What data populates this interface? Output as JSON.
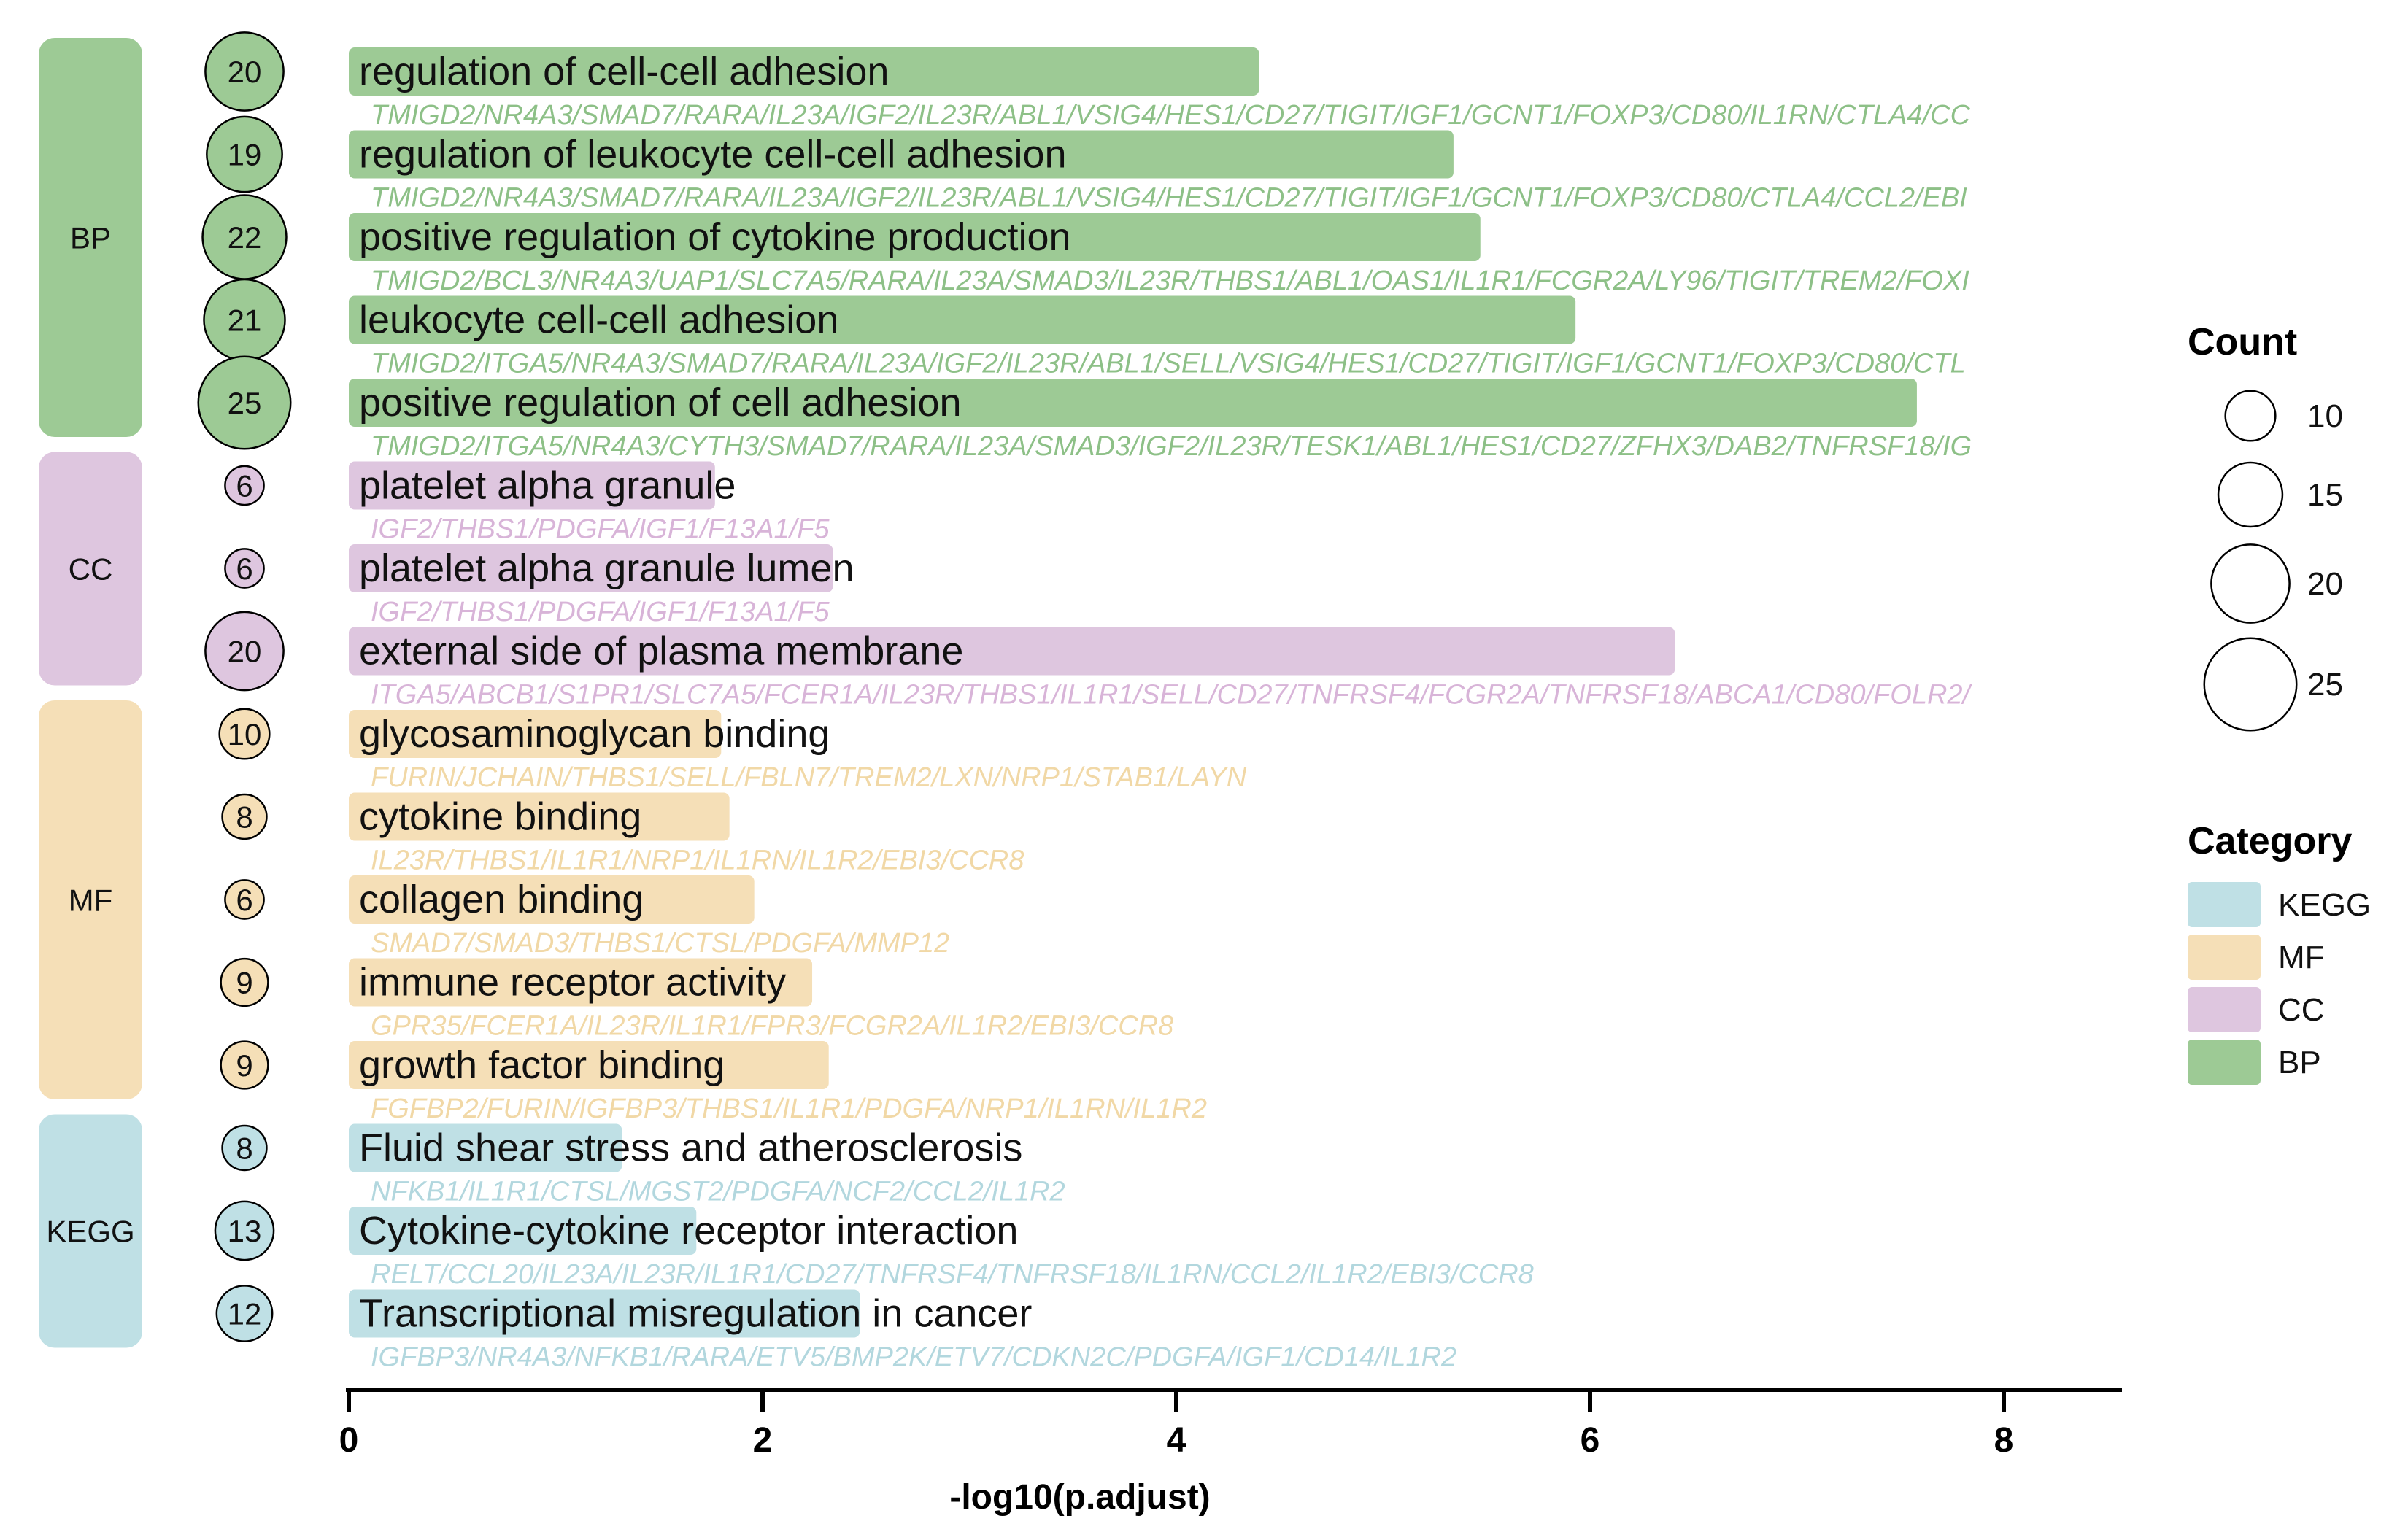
{
  "chart_data": {
    "type": "bar",
    "xlabel": "-log10(p.adjust)",
    "ylabel": "",
    "xlim": [
      0,
      8.6
    ],
    "xticks": [
      0,
      2,
      4,
      6,
      8
    ],
    "grid": false,
    "colors": {
      "BP": "#9DCA95",
      "CC": "#DEC6DF",
      "MF": "#F5DFB7",
      "KEGG": "#BFE0E5"
    },
    "label_colors": {
      "BP": "#8DC087",
      "CC": "#D8B4D8",
      "MF": "#F1D8A6",
      "KEGG": "#B2D7DE"
    },
    "categories": [
      {
        "name": "BP",
        "label": "BP"
      },
      {
        "name": "CC",
        "label": "CC"
      },
      {
        "name": "MF",
        "label": "MF"
      },
      {
        "name": "KEGG",
        "label": "KEGG"
      }
    ],
    "terms": [
      {
        "description": "regulation of cell-cell adhesion",
        "category": "BP",
        "value": 4.4,
        "count": 20,
        "genes": "TMIGD2/NR4A3/SMAD7/RARA/IL23A/IGF2/IL23R/ABL1/VSIG4/HES1/CD27/TIGIT/IGF1/GCNT1/FOXP3/CD80/IL1RN/CTLA4/CC"
      },
      {
        "description": "regulation of leukocyte cell-cell adhesion",
        "category": "BP",
        "value": 5.34,
        "count": 19,
        "genes": "TMIGD2/NR4A3/SMAD7/RARA/IL23A/IGF2/IL23R/ABL1/VSIG4/HES1/CD27/TIGIT/IGF1/GCNT1/FOXP3/CD80/CTLA4/CCL2/EBI"
      },
      {
        "description": "positive regulation of cytokine production",
        "category": "BP",
        "value": 5.47,
        "count": 22,
        "genes": "TMIGD2/BCL3/NR4A3/UAP1/SLC7A5/RARA/IL23A/SMAD3/IL23R/THBS1/ABL1/OAS1/IL1R1/FCGR2A/LY96/TIGIT/TREM2/FOXI"
      },
      {
        "description": "leukocyte cell-cell adhesion",
        "category": "BP",
        "value": 5.93,
        "count": 21,
        "genes": "TMIGD2/ITGA5/NR4A3/SMAD7/RARA/IL23A/IGF2/IL23R/ABL1/SELL/VSIG4/HES1/CD27/TIGIT/IGF1/GCNT1/FOXP3/CD80/CTL"
      },
      {
        "description": "positive regulation of cell adhesion",
        "category": "BP",
        "value": 7.58,
        "count": 25,
        "genes": "TMIGD2/ITGA5/NR4A3/CYTH3/SMAD7/RARA/IL23A/SMAD3/IGF2/IL23R/TESK1/ABL1/HES1/CD27/ZFHX3/DAB2/TNFRSF18/IG"
      },
      {
        "description": "platelet alpha granule",
        "category": "CC",
        "value": 1.77,
        "count": 6,
        "genes": "IGF2/THBS1/PDGFA/IGF1/F13A1/F5"
      },
      {
        "description": "platelet alpha granule lumen",
        "category": "CC",
        "value": 2.34,
        "count": 6,
        "genes": "IGF2/THBS1/PDGFA/IGF1/F13A1/F5"
      },
      {
        "description": "external side of plasma membrane",
        "category": "CC",
        "value": 6.41,
        "count": 20,
        "genes": "ITGA5/ABCB1/S1PR1/SLC7A5/FCER1A/IL23R/THBS1/IL1R1/SELL/CD27/TNFRSF4/FCGR2A/TNFRSF18/ABCA1/CD80/FOLR2/"
      },
      {
        "description": "glycosaminoglycan binding",
        "category": "MF",
        "value": 1.8,
        "count": 10,
        "genes": "FURIN/JCHAIN/THBS1/SELL/FBLN7/TREM2/LXN/NRP1/STAB1/LAYN"
      },
      {
        "description": "cytokine binding",
        "category": "MF",
        "value": 1.84,
        "count": 8,
        "genes": "IL23R/THBS1/IL1R1/NRP1/IL1RN/IL1R2/EBI3/CCR8"
      },
      {
        "description": "collagen binding",
        "category": "MF",
        "value": 1.96,
        "count": 6,
        "genes": "SMAD7/SMAD3/THBS1/CTSL/PDGFA/MMP12"
      },
      {
        "description": "immune receptor activity",
        "category": "MF",
        "value": 2.24,
        "count": 9,
        "genes": "GPR35/FCER1A/IL23R/IL1R1/FPR3/FCGR2A/IL1R2/EBI3/CCR8"
      },
      {
        "description": "growth factor binding",
        "category": "MF",
        "value": 2.32,
        "count": 9,
        "genes": "FGFBP2/FURIN/IGFBP3/THBS1/IL1R1/PDGFA/NRP1/IL1RN/IL1R2"
      },
      {
        "description": "Fluid shear stress and atherosclerosis",
        "category": "KEGG",
        "value": 1.32,
        "count": 8,
        "genes": "NFKB1/IL1R1/CTSL/MGST2/PDGFA/NCF2/CCL2/IL1R2"
      },
      {
        "description": "Cytokine-cytokine receptor interaction",
        "category": "KEGG",
        "value": 1.68,
        "count": 13,
        "genes": "RELT/CCL20/IL23A/IL23R/IL1R1/CD27/TNFRSF4/TNFRSF18/IL1RN/CCL2/IL1R2/EBI3/CCR8"
      },
      {
        "description": "Transcriptional misregulation in cancer",
        "category": "KEGG",
        "value": 2.47,
        "count": 12,
        "genes": "IGFBP3/NR4A3/NFKB1/RARA/ETV5/BMP2K/ETV7/CDKN2C/PDGFA/IGF1/CD14/IL1R2"
      }
    ],
    "legend": {
      "position": "right",
      "count_title": "Count",
      "count_levels": [
        10,
        15,
        20,
        25
      ],
      "category_title": "Category",
      "category_order": [
        "KEGG",
        "MF",
        "CC",
        "BP"
      ]
    }
  }
}
